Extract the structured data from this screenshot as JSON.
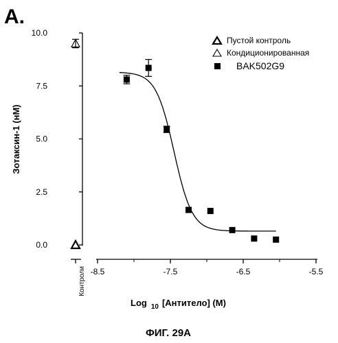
{
  "panel_label": "A.",
  "figure_caption": "ФИГ. 29A",
  "chart_data": {
    "type": "scatter",
    "title": "",
    "ylabel": "Зотаксин-1 (нМ)",
    "xlabel_parts": {
      "prefix": "Log",
      "subscript": "10",
      "suffix": "[Антитело] (М)"
    },
    "xlim": [
      -8.5,
      -5.5
    ],
    "ylim": [
      0,
      10
    ],
    "x_ticks": [
      -8.5,
      -7.5,
      -6.5,
      -5.5
    ],
    "x_tick_labels": [
      "-8.5",
      "-7.5",
      "-6.5",
      "-5.5"
    ],
    "y_ticks": [
      0,
      2.5,
      5,
      7.5,
      10
    ],
    "y_tick_labels": [
      "0.0",
      "2.5",
      "5.0",
      "7.5",
      "10.0"
    ],
    "control_axis_label": "Контроли",
    "grid": false,
    "legend_placement": "top-right",
    "series": [
      {
        "name": "Пустой контроль",
        "marker": "triangle-bold",
        "points": [
          {
            "x": "Контроли",
            "y": 0.0
          }
        ]
      },
      {
        "name": "Кондиционированная",
        "marker": "triangle-open",
        "points": [
          {
            "x": "Контроли",
            "y": 9.5,
            "err": 0.2
          }
        ]
      },
      {
        "name": "BAK502G9",
        "marker": "square-filled",
        "points": [
          {
            "x": -8.1,
            "y": 7.8,
            "err": 0.2
          },
          {
            "x": -7.8,
            "y": 8.35,
            "err": 0.4
          },
          {
            "x": -7.55,
            "y": 5.45,
            "err": 0.15
          },
          {
            "x": -7.25,
            "y": 1.65
          },
          {
            "x": -6.95,
            "y": 1.6
          },
          {
            "x": -6.65,
            "y": 0.7
          },
          {
            "x": -6.35,
            "y": 0.3
          },
          {
            "x": -6.05,
            "y": 0.25
          }
        ]
      }
    ],
    "fit_curve": {
      "bottom": 0.65,
      "top": 8.15,
      "logEC50": -7.45,
      "hill": -3.5,
      "x_range": [
        -8.2,
        -6.05
      ]
    }
  }
}
